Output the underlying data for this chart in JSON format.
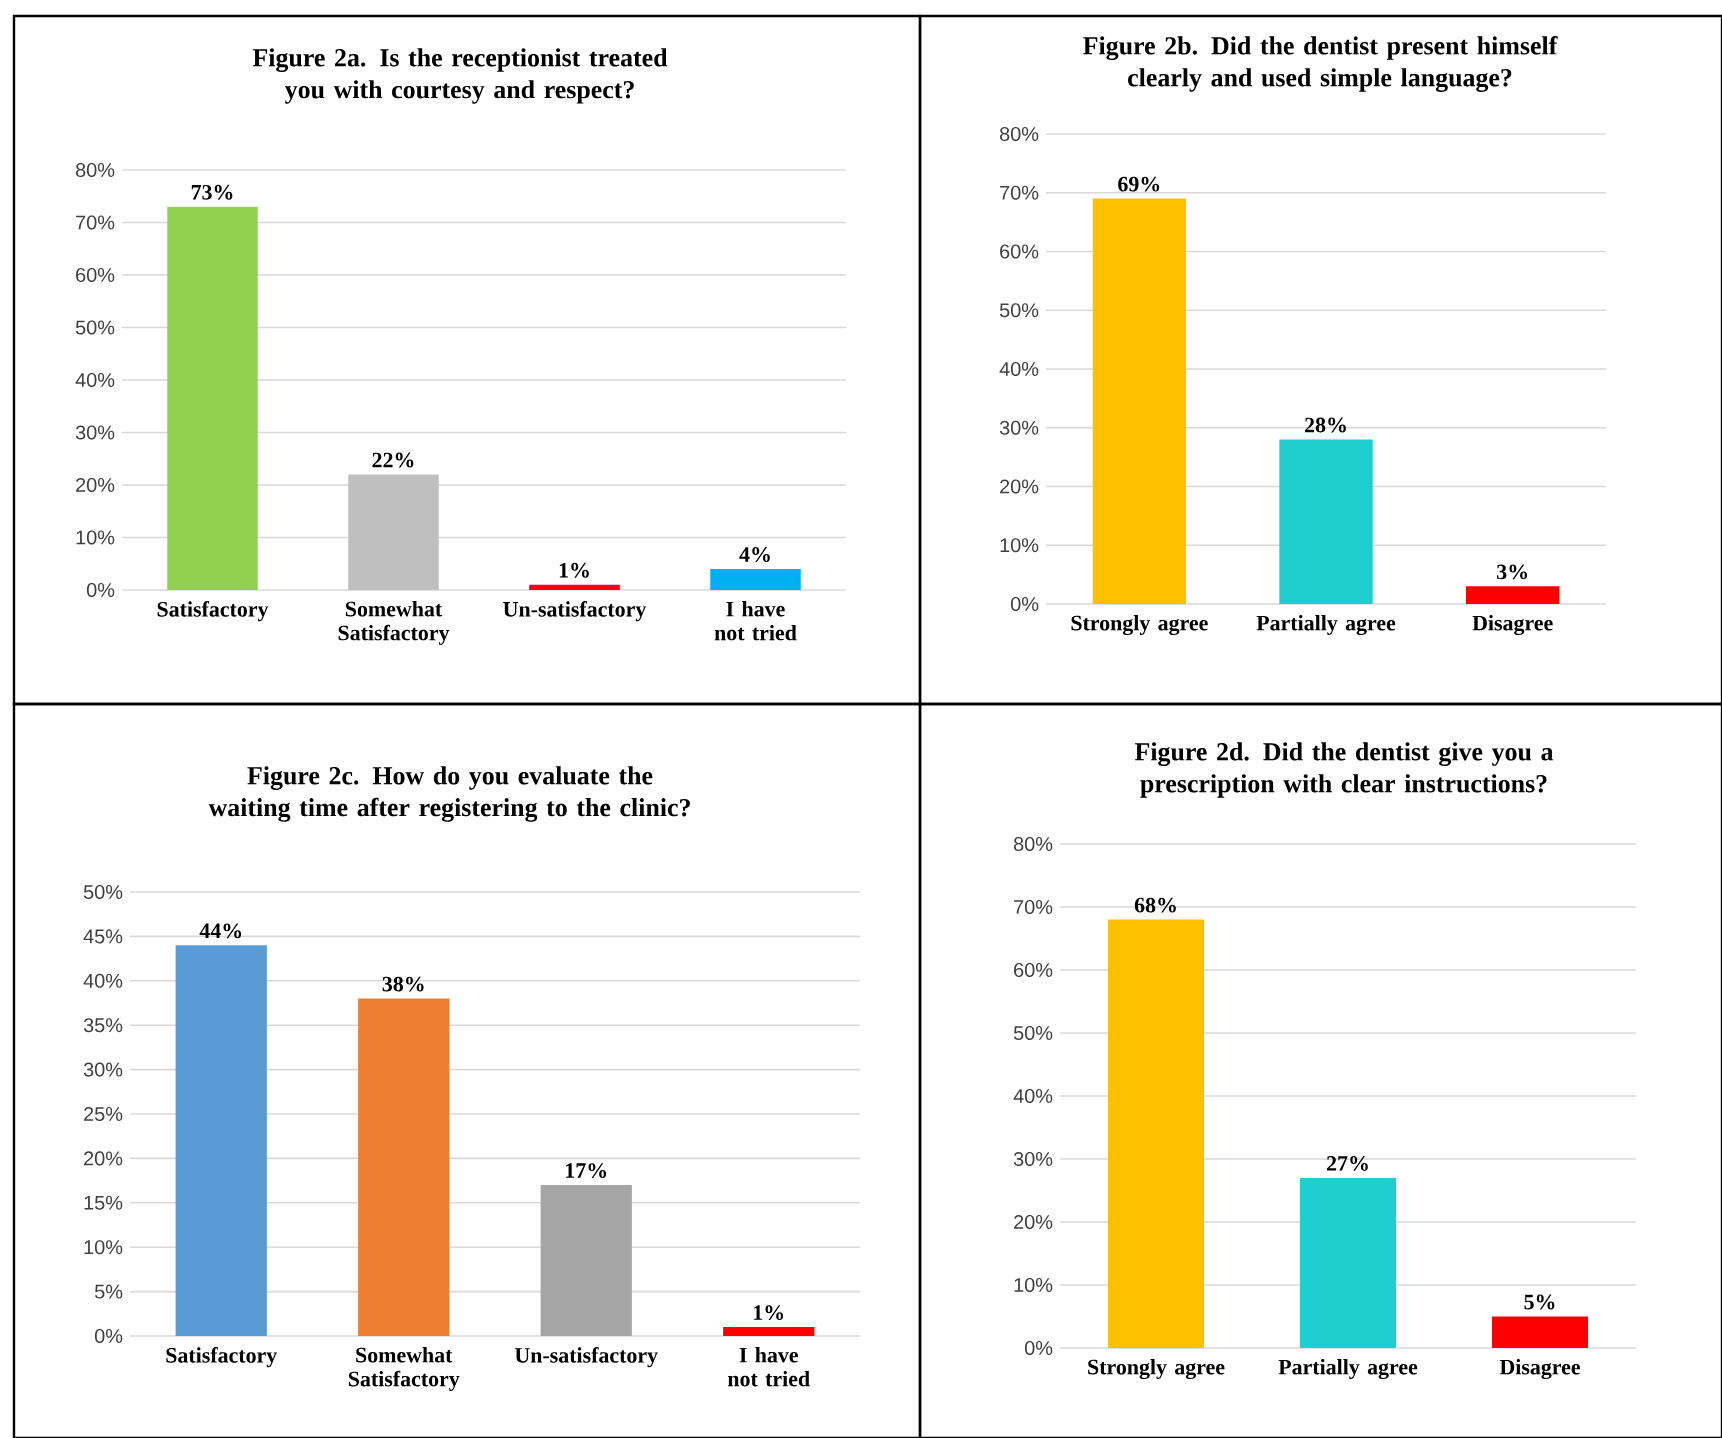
{
  "chart_data": [
    {
      "type": "bar",
      "title": "Figure 2a. Is the receptionist treated you with courtesy and respect?",
      "categories": [
        "Satisfactory",
        "Somewhat Satisfactory",
        "Un-satisfactory",
        "I have not tried"
      ],
      "values": [
        73,
        22,
        1,
        4
      ],
      "colors": [
        "#92d050",
        "#bfbfbf",
        "#ff0000",
        "#00b0f0"
      ],
      "value_labels": [
        "73%",
        "22%",
        "1%",
        "4%"
      ],
      "ylim": [
        0,
        80
      ],
      "yticks": [
        {
          "value": 0,
          "label": "0%"
        },
        {
          "value": 10,
          "label": "10%"
        },
        {
          "value": 20,
          "label": "20%"
        },
        {
          "value": 30,
          "label": "30%"
        },
        {
          "value": 40,
          "label": "40%"
        },
        {
          "value": 50,
          "label": "50%"
        },
        {
          "value": 60,
          "label": "60%"
        },
        {
          "value": 70,
          "label": "70%"
        },
        {
          "value": 80,
          "label": "80%"
        }
      ],
      "grid": "y"
    },
    {
      "type": "bar",
      "title": "Figure 2b. Did the dentist present himself clearly and used simple language?",
      "categories": [
        "Strongly agree",
        "Partially agree",
        "Disagree"
      ],
      "values": [
        69,
        28,
        3
      ],
      "colors": [
        "#ffc000",
        "#1fcfd0",
        "#ff0000"
      ],
      "value_labels": [
        "69%",
        "28%",
        "3%"
      ],
      "ylim": [
        0,
        80
      ],
      "yticks": [
        {
          "value": 0,
          "label": "0%"
        },
        {
          "value": 10,
          "label": "10%"
        },
        {
          "value": 20,
          "label": "20%"
        },
        {
          "value": 30,
          "label": "30%"
        },
        {
          "value": 40,
          "label": "40%"
        },
        {
          "value": 50,
          "label": "50%"
        },
        {
          "value": 60,
          "label": "60%"
        },
        {
          "value": 70,
          "label": "70%"
        },
        {
          "value": 80,
          "label": "80%"
        }
      ],
      "grid": "y"
    },
    {
      "type": "bar",
      "title": "Figure 2c. How do you evaluate the waiting time after registering to the clinic?",
      "categories": [
        "Satisfactory",
        "Somewhat Satisfactory",
        "Un-satisfactory",
        "I have not tried"
      ],
      "values": [
        44,
        38,
        17,
        1
      ],
      "colors": [
        "#5b9bd5",
        "#ed7d31",
        "#a5a5a5",
        "#ff0000"
      ],
      "value_labels": [
        "44%",
        "38%",
        "17%",
        "1%"
      ],
      "ylim": [
        0,
        50
      ],
      "yticks": [
        {
          "value": 0,
          "label": "0%"
        },
        {
          "value": 5,
          "label": "5%"
        },
        {
          "value": 10,
          "label": "10%"
        },
        {
          "value": 15,
          "label": "15%"
        },
        {
          "value": 20,
          "label": "20%"
        },
        {
          "value": 25,
          "label": "25%"
        },
        {
          "value": 30,
          "label": "30%"
        },
        {
          "value": 35,
          "label": "35%"
        },
        {
          "value": 40,
          "label": "40%"
        },
        {
          "value": 45,
          "label": "45%"
        },
        {
          "value": 50,
          "label": "50%"
        }
      ],
      "grid": "y"
    },
    {
      "type": "bar",
      "title": "Figure 2d. Did the dentist give you a prescription with clear instructions?",
      "categories": [
        "Strongly agree",
        "Partially agree",
        "Disagree"
      ],
      "values": [
        68,
        27,
        5
      ],
      "colors": [
        "#ffc000",
        "#1fcfd0",
        "#ff0000"
      ],
      "value_labels": [
        "68%",
        "27%",
        "5%"
      ],
      "ylim": [
        0,
        80
      ],
      "yticks": [
        {
          "value": 0,
          "label": "0%"
        },
        {
          "value": 10,
          "label": "10%"
        },
        {
          "value": 20,
          "label": "20%"
        },
        {
          "value": 30,
          "label": "30%"
        },
        {
          "value": 40,
          "label": "40%"
        },
        {
          "value": 50,
          "label": "50%"
        },
        {
          "value": 60,
          "label": "60%"
        },
        {
          "value": 70,
          "label": "70%"
        },
        {
          "value": 80,
          "label": "80%"
        }
      ],
      "grid": "y"
    }
  ]
}
